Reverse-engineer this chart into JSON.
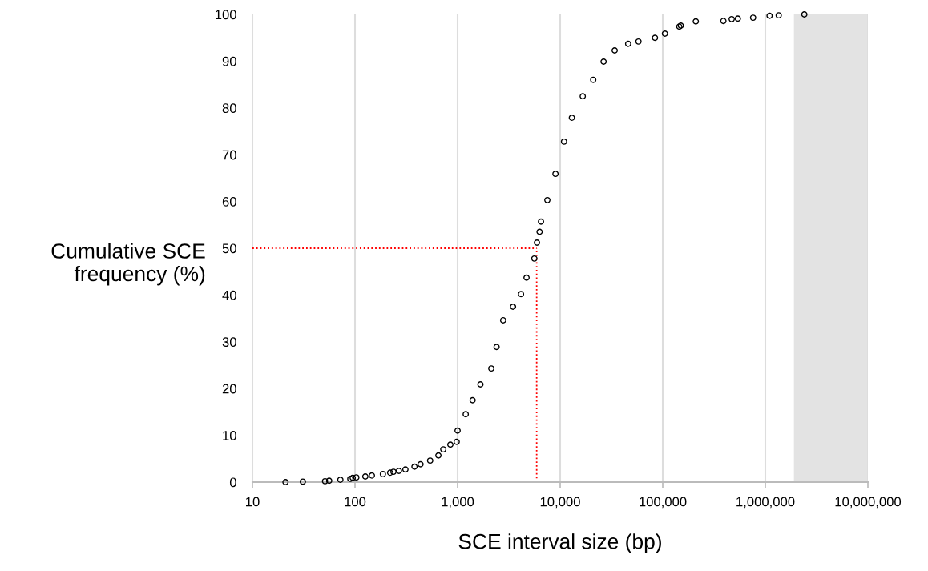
{
  "chart_data": {
    "type": "scatter",
    "xlabel": "SCE interval size (bp)",
    "ylabel": "Cumulative SCE\nfrequency (%)",
    "log": "x",
    "grid": "x",
    "marker": "circle",
    "xlim": [
      10,
      10000000
    ],
    "xticks": [
      {
        "value": 10,
        "label": "10"
      },
      {
        "value": 100,
        "label": "100"
      },
      {
        "value": 1000,
        "label": "1,000"
      },
      {
        "value": 10000,
        "label": "10,000"
      },
      {
        "value": 100000,
        "label": "100,000"
      },
      {
        "value": 1000000,
        "label": "1,000,000"
      },
      {
        "value": 10000000,
        "label": "10,000,000"
      }
    ],
    "ylim": [
      0,
      100
    ],
    "yticks": [
      0,
      10,
      20,
      30,
      40,
      50,
      60,
      70,
      80,
      90,
      100
    ],
    "series": [
      {
        "color": "#000000",
        "x": [
          21,
          31,
          51,
          56,
          72,
          90,
          95,
          103,
          126,
          146,
          187,
          220,
          237,
          268,
          310,
          380,
          435,
          540,
          650,
          725,
          850,
          980,
          1000,
          1200,
          1400,
          1670,
          2130,
          2400,
          2780,
          3470,
          4150,
          4700,
          5600,
          5940,
          6300,
          6500,
          7500,
          9000,
          10900,
          13000,
          16600,
          21000,
          26500,
          34000,
          46000,
          58000,
          84000,
          105000,
          145000,
          150000,
          210000,
          390000,
          470000,
          540000,
          760000,
          1100000,
          1350000,
          2400000
        ],
        "values": [
          0,
          0.1,
          0.2,
          0.3,
          0.5,
          0.7,
          0.9,
          1.0,
          1.2,
          1.4,
          1.7,
          2.0,
          2.2,
          2.4,
          2.7,
          3.3,
          3.8,
          4.6,
          5.7,
          7.0,
          8.0,
          8.6,
          11,
          14.5,
          17.5,
          20.9,
          24.3,
          28.9,
          34.6,
          37.5,
          40.2,
          43.7,
          47.8,
          51.2,
          53.5,
          55.7,
          60.3,
          65.9,
          72.8,
          77.9,
          82.5,
          86,
          89.9,
          92.3,
          93.7,
          94.2,
          95,
          95.9,
          97.4,
          97.6,
          98.5,
          98.6,
          99,
          99.1,
          99.3,
          99.7,
          99.8,
          100
        ]
      }
    ],
    "ref_lines": [
      {
        "axis": "y",
        "value": 50,
        "color": "#ff0000",
        "line_style": "dotted"
      },
      {
        "axis": "x",
        "value": 5900,
        "color": "#ff0000",
        "line_style": "dotted"
      }
    ],
    "bands": [
      {
        "axis": "x",
        "from": 1900000,
        "to": 10000000,
        "color": "#e3e3e3"
      }
    ]
  }
}
